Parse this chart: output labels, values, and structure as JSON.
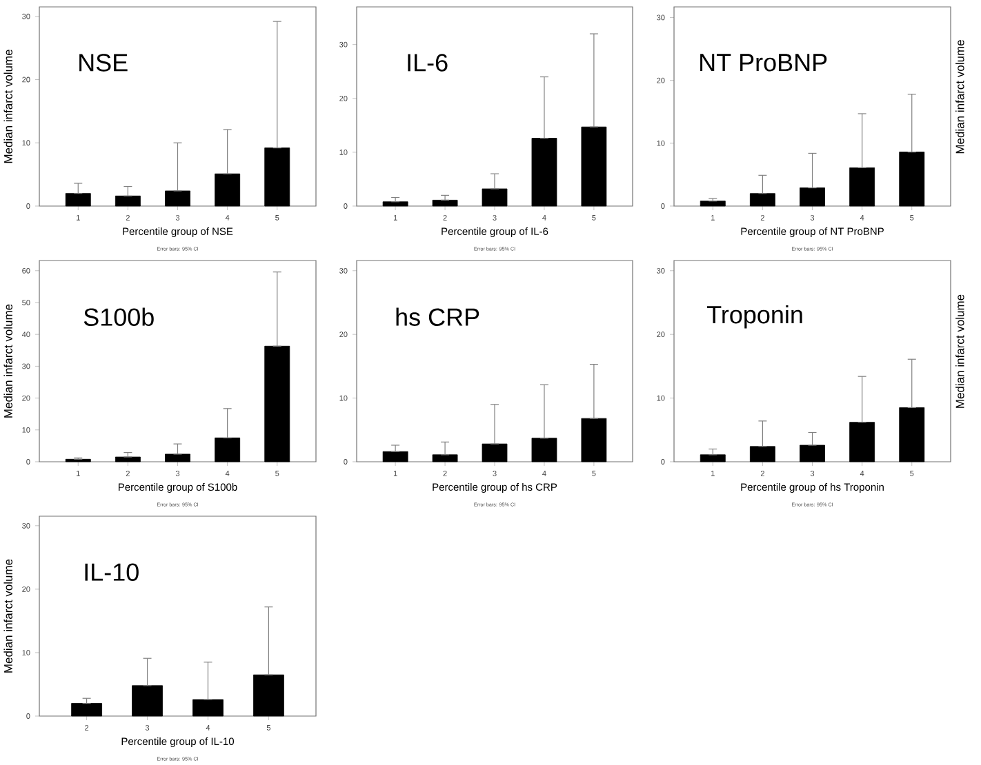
{
  "chart_data": [
    {
      "type": "bar",
      "title": "NSE",
      "xlabel": "Percentile group of NSE",
      "ylabel": "Median infarct volume",
      "categories": [
        "1",
        "2",
        "3",
        "4",
        "5"
      ],
      "values": [
        2.0,
        1.6,
        2.4,
        5.1,
        9.2
      ],
      "errors": [
        [
          2.0,
          3.6
        ],
        [
          1.6,
          3.1
        ],
        [
          2.4,
          10.0
        ],
        [
          5.1,
          12.1
        ],
        [
          9.2,
          29.2
        ]
      ],
      "color": "#000000",
      "ylim": [
        0,
        31.5
      ],
      "yticks": [
        0,
        10,
        20,
        30
      ],
      "annotations": [
        "Error bars: 95% CI"
      ]
    },
    {
      "type": "bar",
      "title": "IL-6",
      "xlabel": "Percentile group of IL-6",
      "categories": [
        "1",
        "2",
        "3",
        "4",
        "5"
      ],
      "values": [
        0.8,
        1.1,
        3.2,
        12.6,
        14.7
      ],
      "errors": [
        [
          0.8,
          1.6
        ],
        [
          1.1,
          2.0
        ],
        [
          3.2,
          6.0
        ],
        [
          12.6,
          24.0
        ],
        [
          14.7,
          32.0
        ]
      ],
      "color": "#000000",
      "ylim": [
        0,
        37
      ],
      "yticks": [
        0,
        10,
        20,
        30
      ],
      "annotations": [
        "Error bars: 95% CI"
      ]
    },
    {
      "type": "bar",
      "title": "NT ProBNP",
      "xlabel": "Percentile group of NT ProBNP",
      "ylabel": "Median infarct volume",
      "categories": [
        "1",
        "2",
        "3",
        "4",
        "5"
      ],
      "values": [
        0.8,
        2.0,
        2.9,
        6.1,
        8.6
      ],
      "errors": [
        [
          0.8,
          1.2
        ],
        [
          2.0,
          4.9
        ],
        [
          2.9,
          8.4
        ],
        [
          6.1,
          14.7
        ],
        [
          8.6,
          17.8
        ]
      ],
      "color": "#000000",
      "ylim": [
        0,
        31.7
      ],
      "yticks": [
        0,
        10,
        20,
        30
      ],
      "annotations": [
        "Error bars: 95% CI"
      ]
    },
    {
      "type": "bar",
      "title": "S100b",
      "xlabel": "Percentile group of S100b",
      "ylabel": "Median infarct volume",
      "categories": [
        "1",
        "2",
        "3",
        "4",
        "5"
      ],
      "values": [
        0.8,
        1.5,
        2.4,
        7.5,
        36.3
      ],
      "errors": [
        [
          0.8,
          1.2
        ],
        [
          1.5,
          2.9
        ],
        [
          2.4,
          5.6
        ],
        [
          7.5,
          16.7
        ],
        [
          36.3,
          59.6
        ]
      ],
      "color": "#000000",
      "ylim": [
        0,
        63.2
      ],
      "yticks": [
        0,
        10,
        20,
        30,
        40,
        50,
        60
      ],
      "annotations": [
        "Error bars: 95% CI"
      ]
    },
    {
      "type": "bar",
      "title": "hs CRP",
      "xlabel": "Percentile group of hs CRP",
      "categories": [
        "1",
        "2",
        "3",
        "4",
        "5"
      ],
      "values": [
        1.6,
        1.1,
        2.8,
        3.7,
        6.8
      ],
      "errors": [
        [
          1.6,
          2.6
        ],
        [
          1.1,
          3.1
        ],
        [
          2.8,
          9.0
        ],
        [
          3.7,
          12.1
        ],
        [
          6.8,
          15.3
        ]
      ],
      "color": "#000000",
      "ylim": [
        0,
        31.6
      ],
      "yticks": [
        0,
        10,
        20,
        30
      ],
      "annotations": [
        "Error bars: 95% CI"
      ]
    },
    {
      "type": "bar",
      "title": "Troponin",
      "xlabel": "Percentile group of hs Troponin",
      "ylabel": "Median infarct volume",
      "categories": [
        "1",
        "2",
        "3",
        "4",
        "5"
      ],
      "values": [
        1.1,
        2.4,
        2.6,
        6.2,
        8.5
      ],
      "errors": [
        [
          1.1,
          2.0
        ],
        [
          2.4,
          6.4
        ],
        [
          2.6,
          4.6
        ],
        [
          6.2,
          13.4
        ],
        [
          8.5,
          16.1
        ]
      ],
      "color": "#000000",
      "ylim": [
        0,
        31.6
      ],
      "yticks": [
        0,
        10,
        20,
        30
      ],
      "annotations": [
        "Error bars: 95% CI"
      ]
    },
    {
      "type": "bar",
      "title": "IL-10",
      "xlabel": "Percentile group of IL-10",
      "ylabel": "Median infarct volume",
      "categories": [
        "2",
        "3",
        "4",
        "5"
      ],
      "values": [
        2.0,
        4.8,
        2.6,
        6.5
      ],
      "errors": [
        [
          2.0,
          2.8
        ],
        [
          4.8,
          9.1
        ],
        [
          2.6,
          8.5
        ],
        [
          6.5,
          17.2
        ]
      ],
      "color": "#000000",
      "ylim": [
        0,
        31.5
      ],
      "yticks": [
        0,
        10,
        20,
        30
      ],
      "annotations": [
        "Error bars: 95% CI"
      ]
    }
  ]
}
